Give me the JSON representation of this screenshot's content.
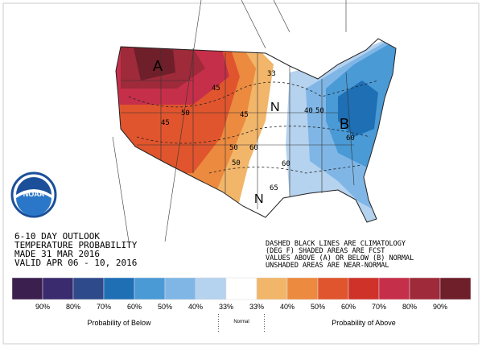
{
  "outlook": {
    "title_lines": [
      "6-10 DAY OUTLOOK",
      "TEMPERATURE PROBABILITY",
      "MADE  31 MAR 2016",
      "VALID  APR 06 - 10, 2016"
    ],
    "notes": [
      "DASHED BLACK LINES ARE CLIMATOLOGY",
      "(DEG F) SHADED AREAS ARE FCST",
      "VALUES ABOVE (A) OR BELOW (B) NORMAL",
      "UNSHADED AREAS ARE NEAR-NORMAL"
    ],
    "logo": "NOAA"
  },
  "map_labels": {
    "above": "A",
    "below": "B",
    "normal": [
      "N",
      "N"
    ],
    "contours": [
      "33",
      "45",
      "45",
      "50",
      "50",
      "60",
      "65",
      "40",
      "50",
      "60",
      "60",
      "50",
      "45"
    ]
  },
  "legend": {
    "colors": [
      "#3b1f4f",
      "#3a2a6e",
      "#2f4a8a",
      "#1f6fb5",
      "#4a9ad6",
      "#7fb6e6",
      "#b5d2ee",
      "#ffffff",
      "#f2b66a",
      "#ec8a3f",
      "#e0552d",
      "#cf3229",
      "#c62f4a",
      "#9e2a3a",
      "#6e1f2a"
    ],
    "labels": [
      "90%",
      "80%",
      "70%",
      "60%",
      "50%",
      "40%",
      "33%",
      "33%",
      "40%",
      "50%",
      "60%",
      "70%",
      "80%",
      "90%"
    ],
    "below": "Probability of Below",
    "normal": "Normal",
    "above": "Probability of Above"
  }
}
